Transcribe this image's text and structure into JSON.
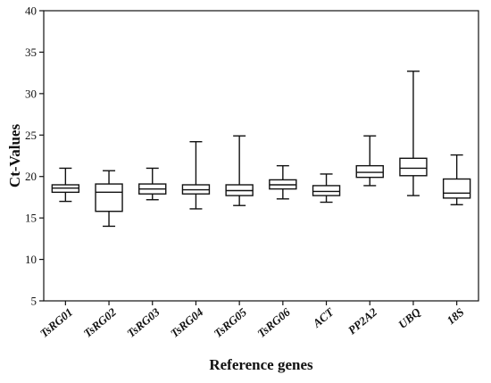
{
  "chart_data": {
    "type": "boxplot",
    "xlabel": "Reference genes",
    "ylabel": "Ct-Values",
    "ylim": [
      5,
      40
    ],
    "yticks": [
      5,
      10,
      15,
      20,
      25,
      30,
      35,
      40
    ],
    "grid": false,
    "legend": "none",
    "categories": [
      "TsRG01",
      "TsRG02",
      "TsRG03",
      "TsRG04",
      "TsRG05",
      "TsRG06",
      "ACT",
      "PP2A2",
      "UBQ",
      "18S"
    ],
    "boxes": [
      {
        "label": "TsRG01",
        "min": 17.0,
        "q1": 18.1,
        "median": 18.6,
        "q3": 19.0,
        "max": 21.0
      },
      {
        "label": "TsRG02",
        "min": 14.0,
        "q1": 15.8,
        "median": 18.1,
        "q3": 19.1,
        "max": 20.7
      },
      {
        "label": "TsRG03",
        "min": 17.2,
        "q1": 17.9,
        "median": 18.5,
        "q3": 19.1,
        "max": 21.0
      },
      {
        "label": "TsRG04",
        "min": 16.1,
        "q1": 17.9,
        "median": 18.4,
        "q3": 19.0,
        "max": 24.2
      },
      {
        "label": "TsRG05",
        "min": 16.5,
        "q1": 17.7,
        "median": 18.3,
        "q3": 19.0,
        "max": 24.9
      },
      {
        "label": "TsRG06",
        "min": 17.3,
        "q1": 18.5,
        "median": 19.0,
        "q3": 19.6,
        "max": 21.3
      },
      {
        "label": "ACT",
        "min": 16.9,
        "q1": 17.7,
        "median": 18.2,
        "q3": 18.9,
        "max": 20.3
      },
      {
        "label": "PP2A2",
        "min": 18.9,
        "q1": 19.9,
        "median": 20.5,
        "q3": 21.3,
        "max": 24.9
      },
      {
        "label": "UBQ",
        "min": 17.7,
        "q1": 20.1,
        "median": 21.0,
        "q3": 22.2,
        "max": 32.7
      },
      {
        "label": "18S",
        "min": 16.6,
        "q1": 17.4,
        "median": 18.0,
        "q3": 19.7,
        "max": 22.6
      }
    ]
  }
}
